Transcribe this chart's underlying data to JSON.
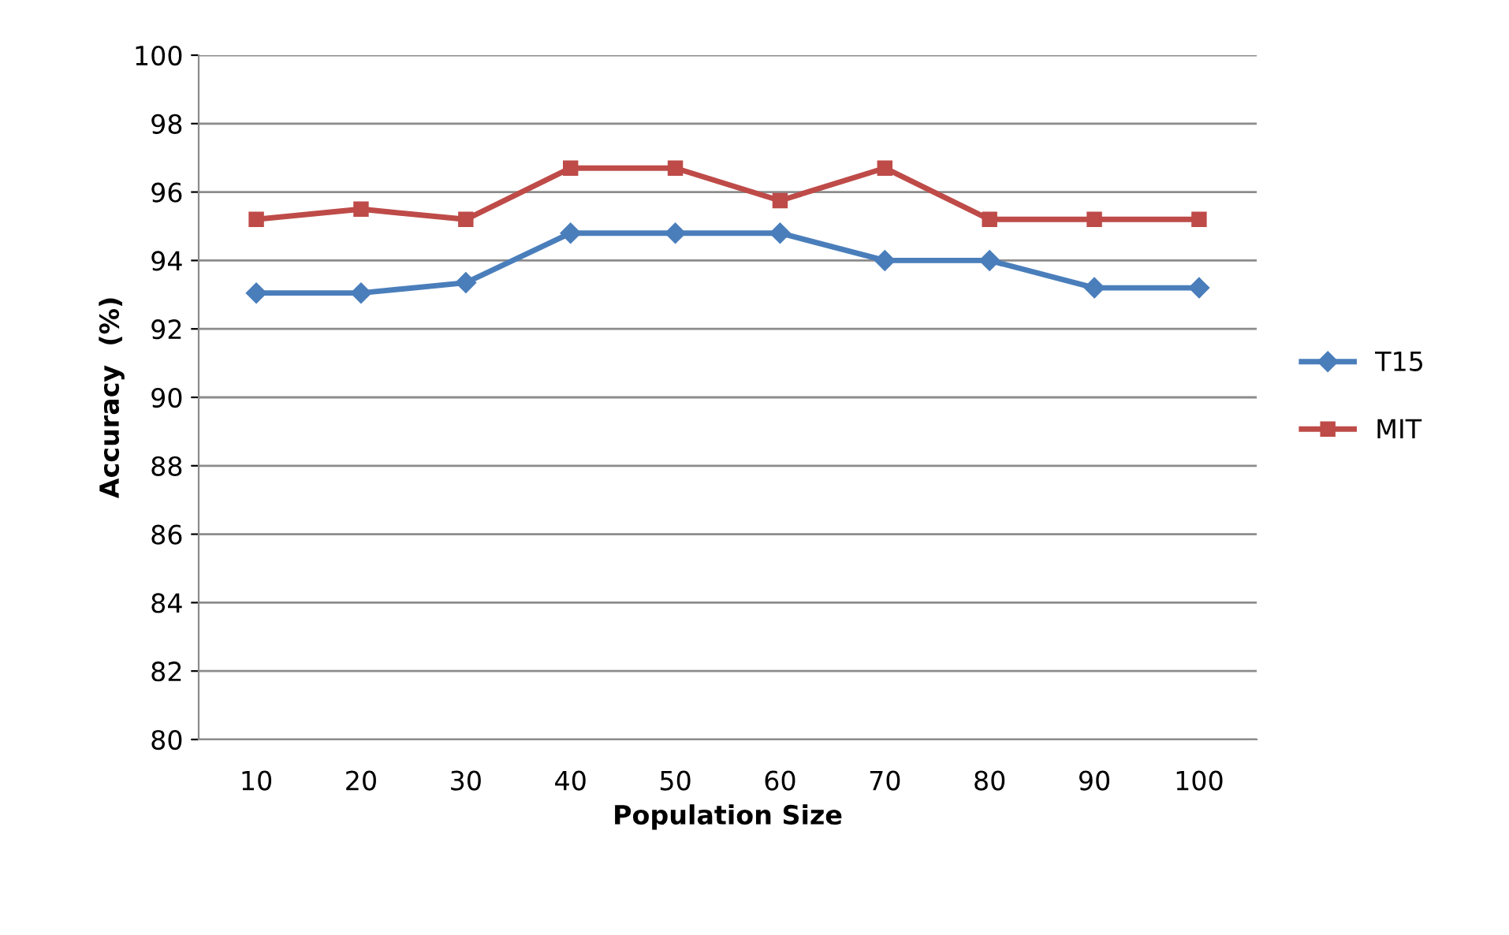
{
  "chart_data": {
    "type": "line",
    "xlabel": "Population Size",
    "ylabel": "Accuracy  (%)",
    "categories": [
      "10",
      "20",
      "30",
      "40",
      "50",
      "60",
      "70",
      "80",
      "90",
      "100"
    ],
    "series": [
      {
        "name": "T15",
        "color": "#4a7ebb",
        "marker": "diamond",
        "values": [
          93.05,
          93.05,
          93.35,
          94.8,
          94.8,
          94.8,
          94.0,
          94.0,
          93.2,
          93.2
        ]
      },
      {
        "name": "MIT",
        "color": "#be4b48",
        "marker": "square",
        "values": [
          95.2,
          95.5,
          95.2,
          96.7,
          96.7,
          95.75,
          96.7,
          95.2,
          95.2,
          95.2
        ]
      }
    ],
    "ylim": [
      80,
      100
    ],
    "yticks": [
      80,
      82,
      84,
      86,
      88,
      90,
      92,
      94,
      96,
      98,
      100
    ],
    "grid": "y",
    "legend": "right"
  }
}
